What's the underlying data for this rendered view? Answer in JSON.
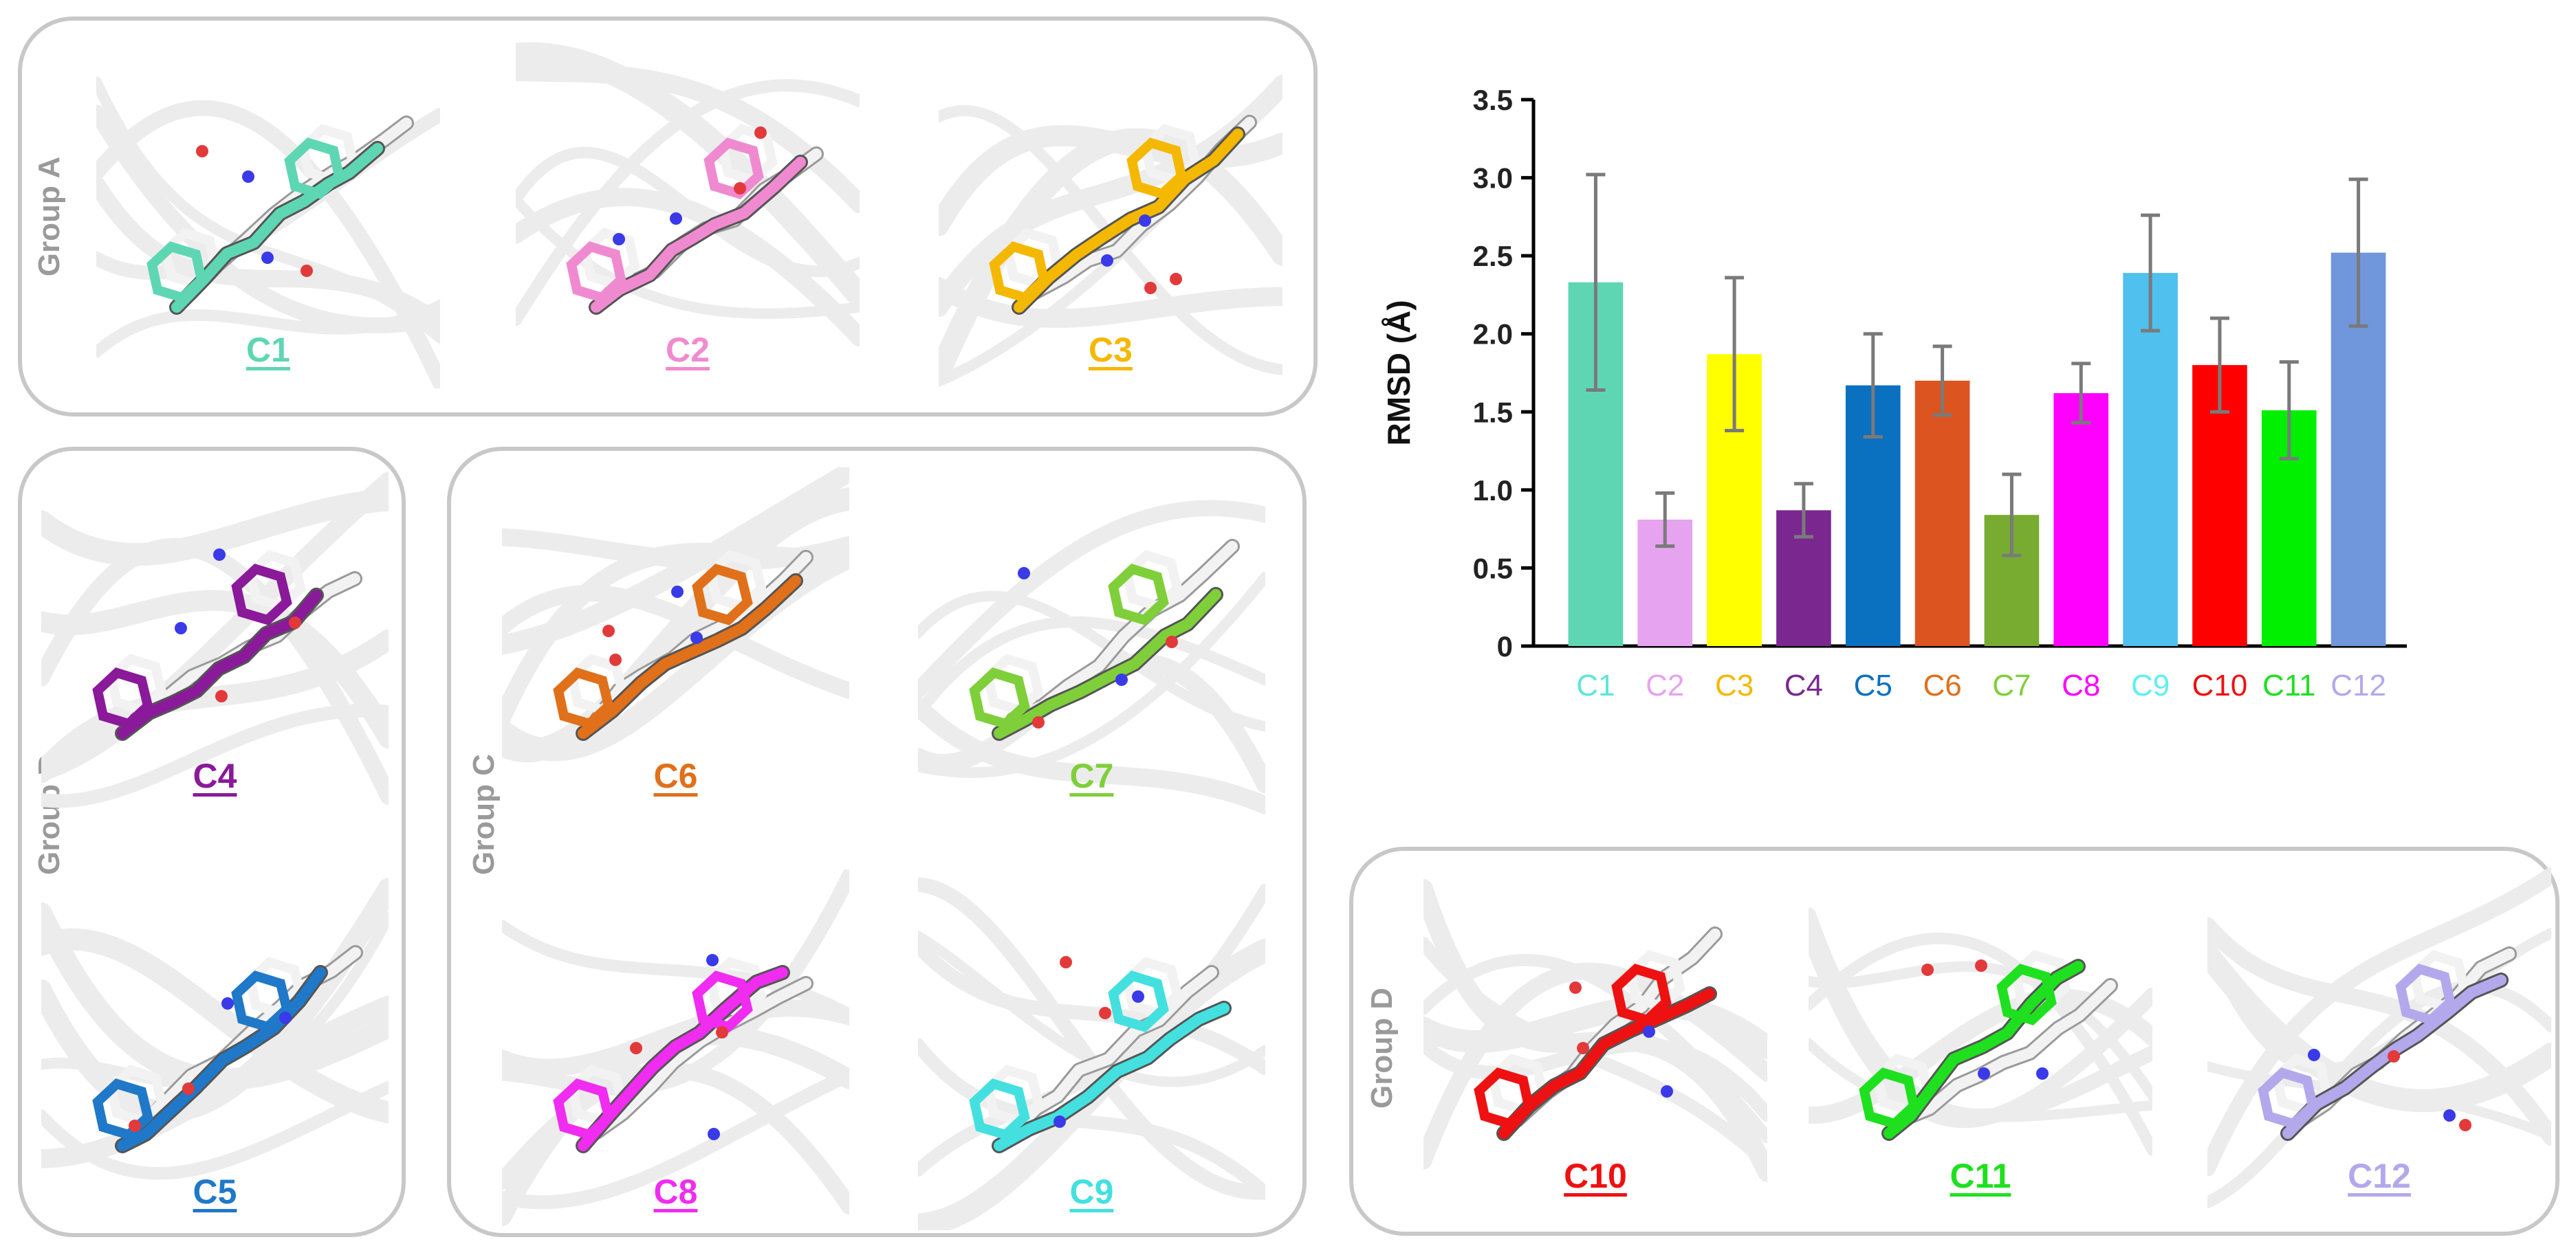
{
  "groups": [
    {
      "label": "Group A"
    },
    {
      "label": "Group B"
    },
    {
      "label": "Group C"
    },
    {
      "label": "Group D"
    }
  ],
  "panels": [
    {
      "label": "C1",
      "color": "#5ed6b4"
    },
    {
      "label": "C2",
      "color": "#f08ad0"
    },
    {
      "label": "C3",
      "color": "#f5b800"
    },
    {
      "label": "C4",
      "color": "#8a1a9a"
    },
    {
      "label": "C5",
      "color": "#1f78c8"
    },
    {
      "label": "C6",
      "color": "#e0701a"
    },
    {
      "label": "C7",
      "color": "#7fcf3a"
    },
    {
      "label": "C8",
      "color": "#f02cf0"
    },
    {
      "label": "C9",
      "color": "#44e0e0"
    },
    {
      "label": "C10",
      "color": "#ee1111"
    },
    {
      "label": "C11",
      "color": "#1fe01f"
    },
    {
      "label": "C12",
      "color": "#b4a8ec"
    }
  ],
  "chart_data": {
    "type": "bar",
    "ylabel": "RMSD (Å)",
    "ylim": [
      0,
      3.5
    ],
    "yticks": [
      "0",
      "0.5",
      "1.0",
      "1.5",
      "2.0",
      "2.5",
      "3.0",
      "3.5"
    ],
    "categories": [
      "C1",
      "C2",
      "C3",
      "C4",
      "C5",
      "C6",
      "C7",
      "C8",
      "C9",
      "C10",
      "C11",
      "C12"
    ],
    "values": [
      2.33,
      0.81,
      1.87,
      0.87,
      1.67,
      1.7,
      0.84,
      1.62,
      2.39,
      1.8,
      1.51,
      2.52
    ],
    "errors": [
      0.69,
      0.17,
      0.49,
      0.17,
      0.33,
      0.22,
      0.26,
      0.19,
      0.37,
      0.3,
      0.31,
      0.47
    ],
    "bar_colors": [
      "#5ed6b4",
      "#e6a3f0",
      "#ffff00",
      "#7a2890",
      "#0a70c0",
      "#dc5420",
      "#78ac30",
      "#ff00ff",
      "#50c0ee",
      "#ff0000",
      "#00f000",
      "#7097dc"
    ],
    "label_colors": [
      "#5ee6d8",
      "#e6a3f0",
      "#f5b800",
      "#7a2890",
      "#0a70c0",
      "#e0701a",
      "#7fcf3a",
      "#ff00ff",
      "#5ef0f0",
      "#ee1111",
      "#1fe01f",
      "#b4a8ec"
    ],
    "error_color": "#7a7a7a",
    "grid": false
  }
}
